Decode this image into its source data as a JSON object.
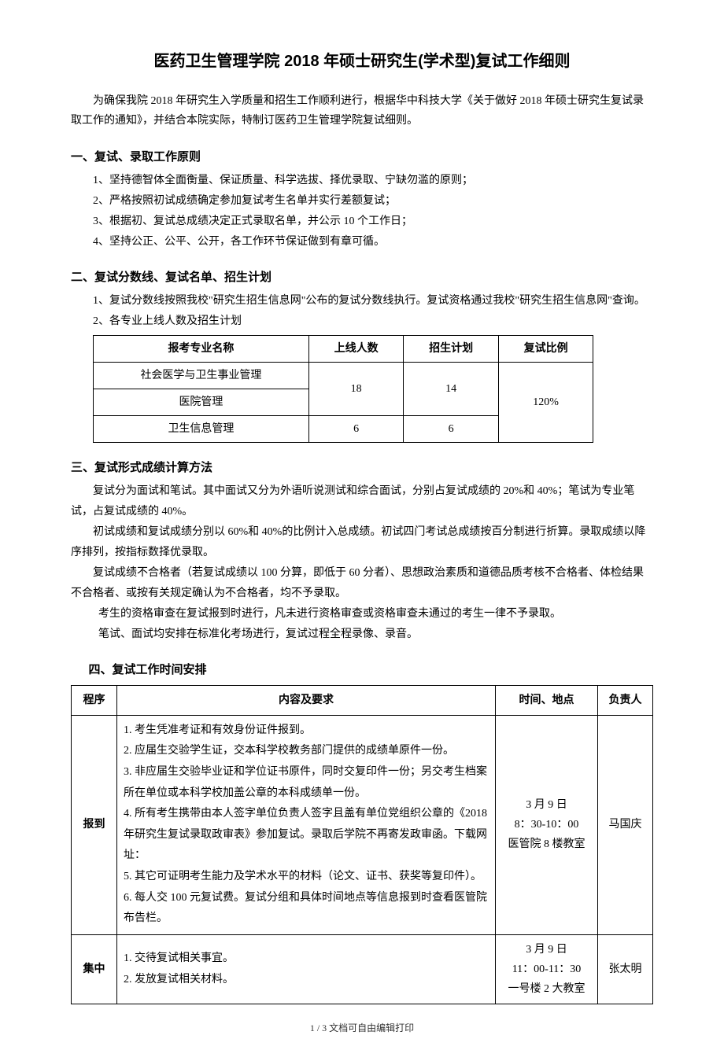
{
  "title": "医药卫生管理学院 2018 年硕士研究生(学术型)复试工作细则",
  "intro": "为确保我院 2018 年研究生入学质量和招生工作顺利进行，根据华中科技大学《关于做好 2018 年硕士研究生复试录取工作的通知》，并结合本院实际，特制订医药卫生管理学院复试细则。",
  "section1": {
    "heading": "一、复试、录取工作原则",
    "items": [
      "1、坚持德智体全面衡量、保证质量、科学选拔、择优录取、宁缺勿滥的原则；",
      "2、严格按照初试成绩确定参加复试考生名单并实行差额复试；",
      "3、根据初、复试总成绩决定正式录取名单，并公示 10 个工作日；",
      "4、坚持公正、公平、公开，各工作环节保证做到有章可循。"
    ]
  },
  "section2": {
    "heading": "二、复试分数线、复试名单、招生计划",
    "item1": "1、复试分数线按照我校\"研究生招生信息网\"公布的复试分数线执行。复试资格通过我校\"研究生招生信息网\"查询。",
    "item2": "2、各专业上线人数及招生计划",
    "table": {
      "headers": [
        "报考专业名称",
        "上线人数",
        "招生计划",
        "复试比例"
      ],
      "rows": [
        {
          "major": "社会医学与卫生事业管理",
          "online": "18",
          "plan": "14",
          "ratio": "120%"
        },
        {
          "major": "医院管理"
        },
        {
          "major": "卫生信息管理",
          "online": "6",
          "plan": "6"
        }
      ]
    }
  },
  "section3": {
    "heading": "三、复试形式成绩计算方法",
    "paras": [
      "复试分为面试和笔试。其中面试又分为外语听说测试和综合面试，分别占复试成绩的 20%和 40%；笔试为专业笔试，占复试成绩的 40%。",
      "初试成绩和复试成绩分别以 60%和 40%的比例计入总成绩。初试四门考试总成绩按百分制进行折算。录取成绩以降序排列，按指标数择优录取。",
      "复试成绩不合格者（若复试成绩以 100 分算，即低于 60 分者）、思想政治素质和道德品质考核不合格者、体检结果不合格者、或按有关规定确认为不合格者，均不予录取。"
    ],
    "extra": [
      "考生的资格审查在复试报到时进行，凡未进行资格审查或资格审查未通过的考生一律不予录取。",
      "笔试、面试均安排在标准化考场进行，复试过程全程录像、录音。"
    ]
  },
  "section4": {
    "heading": "四、复试工作时间安排",
    "table": {
      "headers": [
        "程序",
        "内容及要求",
        "时间、地点",
        "负责人"
      ],
      "rows": [
        {
          "step": "报到",
          "content": "1. 考生凭准考证和有效身份证件报到。\n2. 应届生交验学生证，交本科学校教务部门提供的成绩单原件一份。\n3. 非应届生交验毕业证和学位证书原件，同时交复印件一份；另交考生档案所在单位或本科学校加盖公章的本科成绩单一份。\n4. 所有考生携带由本人签字单位负责人签字且盖有单位党组织公章的《2018 年研究生复试录取政审表》参加复试。录取后学院不再寄发政审函。下载网址：\n5. 其它可证明考生能力及学术水平的材料（论文、证书、获奖等复印件）。\n6. 每人交 100 元复试费。复试分组和具体时间地点等信息报到时查看医管院布告栏。",
          "time": "3 月 9 日\n8：30-10：00\n医管院 8 楼教室",
          "person": "马国庆"
        },
        {
          "step": "集中",
          "content": "1. 交待复试相关事宜。\n2. 发放复试相关材料。",
          "time": "3 月 9 日\n11：00-11：30\n一号楼 2 大教室",
          "person": "张太明"
        }
      ]
    }
  },
  "footer": "1 / 3 文档可自由编辑打印"
}
